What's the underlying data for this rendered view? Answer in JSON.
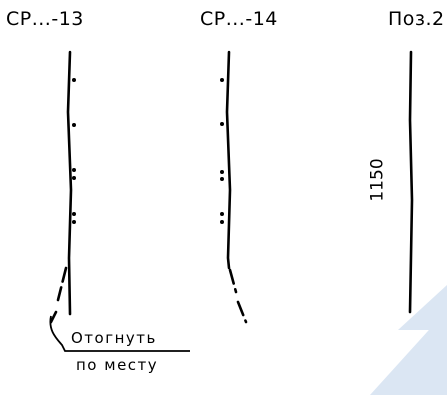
{
  "headers": {
    "left": "СР...-13",
    "middle": "СР...-14",
    "right": "Поз.2"
  },
  "dimension": "1150",
  "note": {
    "line1": "Отогнуть",
    "line2": "по месту"
  },
  "colors": {
    "ink": "#000000",
    "watermark": "#dbe6f3"
  }
}
